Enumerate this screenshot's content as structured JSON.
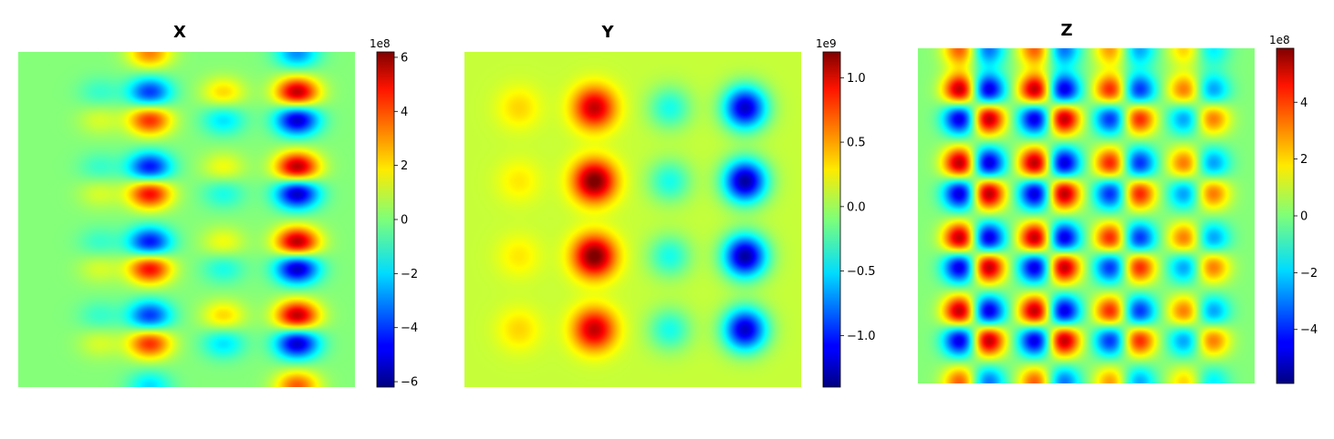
{
  "chart_data": [
    {
      "type": "heatmap",
      "title": "X",
      "colormap": "jet",
      "colorbar": {
        "exponent_label": "1e8",
        "range": [
          -6.2,
          6.2
        ],
        "ticks": [
          -6,
          -4,
          -2,
          0,
          2,
          4,
          6
        ],
        "tick_labels": [
          "−6",
          "−4",
          "−2",
          "0",
          "2",
          "4",
          "6"
        ]
      },
      "axes": "off",
      "peaks": [
        {
          "col": 2,
          "row": 0,
          "value": 3.0
        },
        {
          "col": 4,
          "row": 0,
          "value": -3.0
        },
        {
          "col": 1,
          "row": 1,
          "value": -1.0
        },
        {
          "col": 2,
          "row": 1,
          "value": -4.2
        },
        {
          "col": 3,
          "row": 1,
          "value": 2.0
        },
        {
          "col": 4,
          "row": 1,
          "value": 5.6
        },
        {
          "col": 1,
          "row": 2,
          "value": 1.0
        },
        {
          "col": 2,
          "row": 2,
          "value": 4.2
        },
        {
          "col": 3,
          "row": 2,
          "value": -2.0
        },
        {
          "col": 4,
          "row": 2,
          "value": -5.6
        },
        {
          "col": 1,
          "row": 3,
          "value": -1.0
        },
        {
          "col": 2,
          "row": 3,
          "value": -4.8
        },
        {
          "col": 3,
          "row": 3,
          "value": 1.4
        },
        {
          "col": 4,
          "row": 3,
          "value": 5.8
        },
        {
          "col": 1,
          "row": 4,
          "value": 1.0
        },
        {
          "col": 2,
          "row": 4,
          "value": 4.8
        },
        {
          "col": 3,
          "row": 4,
          "value": -1.4
        },
        {
          "col": 4,
          "row": 4,
          "value": -5.8
        },
        {
          "col": 1,
          "row": 5,
          "value": -1.0
        },
        {
          "col": 2,
          "row": 5,
          "value": -4.8
        },
        {
          "col": 3,
          "row": 5,
          "value": 1.4
        },
        {
          "col": 4,
          "row": 5,
          "value": 5.8
        },
        {
          "col": 1,
          "row": 6,
          "value": 1.0
        },
        {
          "col": 2,
          "row": 6,
          "value": 4.8
        },
        {
          "col": 3,
          "row": 6,
          "value": -1.4
        },
        {
          "col": 4,
          "row": 6,
          "value": -5.8
        },
        {
          "col": 1,
          "row": 7,
          "value": -1.0
        },
        {
          "col": 2,
          "row": 7,
          "value": -4.2
        },
        {
          "col": 3,
          "row": 7,
          "value": 2.0
        },
        {
          "col": 4,
          "row": 7,
          "value": 5.6
        },
        {
          "col": 1,
          "row": 8,
          "value": 1.0
        },
        {
          "col": 2,
          "row": 8,
          "value": 4.2
        },
        {
          "col": 3,
          "row": 8,
          "value": -2.0
        },
        {
          "col": 4,
          "row": 8,
          "value": -5.6
        },
        {
          "col": 2,
          "row": 9,
          "value": -2.0
        },
        {
          "col": 4,
          "row": 9,
          "value": 3.5
        }
      ]
    },
    {
      "type": "heatmap",
      "title": "Y",
      "colormap": "jet",
      "colorbar": {
        "exponent_label": "1e9",
        "range": [
          -1.4,
          1.2
        ],
        "ticks": [
          -1.0,
          -0.5,
          0.0,
          0.5,
          1.0
        ],
        "tick_labels": [
          "−1.0",
          "−0.5",
          "0.0",
          "0.5",
          "1.0"
        ]
      },
      "axes": "off",
      "peaks": [
        {
          "col": 0,
          "row": 0,
          "value": 0.25
        },
        {
          "col": 1,
          "row": 0,
          "value": 0.95
        },
        {
          "col": 2,
          "row": 0,
          "value": -0.45
        },
        {
          "col": 3,
          "row": 0,
          "value": -1.3
        },
        {
          "col": 0,
          "row": 1,
          "value": 0.2
        },
        {
          "col": 1,
          "row": 1,
          "value": 1.15
        },
        {
          "col": 2,
          "row": 1,
          "value": -0.45
        },
        {
          "col": 3,
          "row": 1,
          "value": -1.4
        },
        {
          "col": 0,
          "row": 2,
          "value": 0.2
        },
        {
          "col": 1,
          "row": 2,
          "value": 1.15
        },
        {
          "col": 2,
          "row": 2,
          "value": -0.45
        },
        {
          "col": 3,
          "row": 2,
          "value": -1.4
        },
        {
          "col": 0,
          "row": 3,
          "value": 0.25
        },
        {
          "col": 1,
          "row": 3,
          "value": 0.95
        },
        {
          "col": 2,
          "row": 3,
          "value": -0.45
        },
        {
          "col": 3,
          "row": 3,
          "value": -1.3
        }
      ]
    },
    {
      "type": "heatmap",
      "title": "Z",
      "colormap": "jet",
      "colorbar": {
        "exponent_label": "1e8",
        "range": [
          -5.9,
          5.9
        ],
        "ticks": [
          -4,
          -2,
          0,
          2,
          4
        ],
        "tick_labels": [
          "−4",
          "−2",
          "0",
          "2",
          "4"
        ]
      },
      "axes": "off",
      "peaks": [
        {
          "col": 0,
          "row": 0,
          "value": 0.0
        },
        {
          "col": 1,
          "row": 0,
          "value": 5.8
        },
        {
          "col": 2,
          "row": 0,
          "value": -5.6
        },
        {
          "col": 3,
          "row": 0,
          "value": 5.8
        },
        {
          "col": 4,
          "row": 0,
          "value": -5.6
        },
        {
          "col": 5,
          "row": 0,
          "value": 4.5
        },
        {
          "col": 6,
          "row": 0,
          "value": -4.5
        },
        {
          "col": 7,
          "row": 0,
          "value": 3.3
        },
        {
          "col": 8,
          "row": 0,
          "value": -3.0
        },
        {
          "col": 0,
          "row": 1,
          "value": 0.0
        },
        {
          "col": 1,
          "row": 1,
          "value": -5.6
        },
        {
          "col": 2,
          "row": 1,
          "value": 5.8
        },
        {
          "col": 3,
          "row": 1,
          "value": -5.6
        },
        {
          "col": 4,
          "row": 1,
          "value": 5.8
        },
        {
          "col": 5,
          "row": 1,
          "value": -4.5
        },
        {
          "col": 6,
          "row": 1,
          "value": 4.5
        },
        {
          "col": 7,
          "row": 1,
          "value": -3.0
        },
        {
          "col": 8,
          "row": 1,
          "value": 3.3
        }
      ]
    }
  ]
}
